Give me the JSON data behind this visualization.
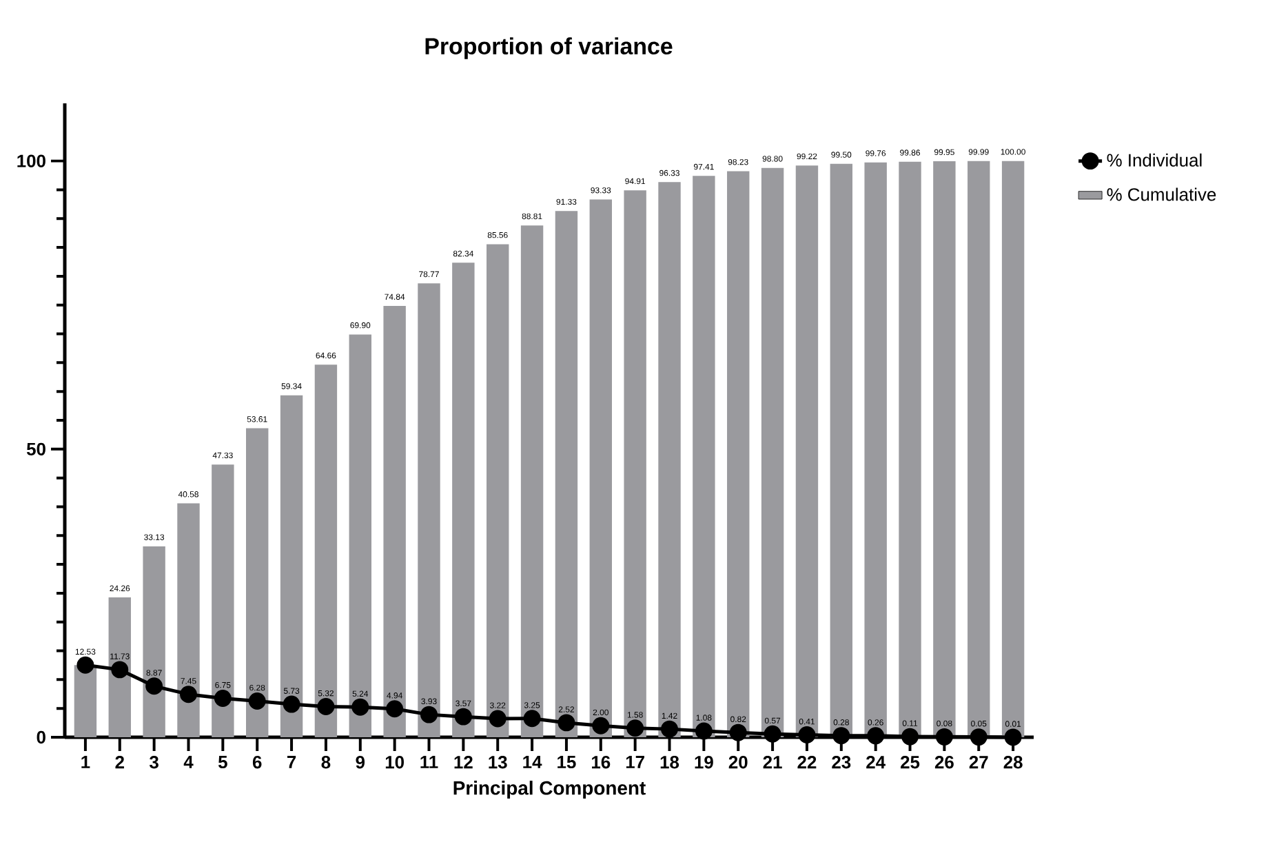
{
  "chart_data": {
    "type": "bar",
    "title": "Proportion of variance",
    "xlabel": "Principal Component",
    "categories": [
      "1",
      "2",
      "3",
      "4",
      "5",
      "6",
      "7",
      "8",
      "9",
      "10",
      "11",
      "12",
      "13",
      "14",
      "15",
      "16",
      "17",
      "18",
      "19",
      "20",
      "21",
      "22",
      "23",
      "24",
      "25",
      "26",
      "27",
      "28"
    ],
    "series": [
      {
        "name": "% Individual",
        "type": "line",
        "color": "#000000",
        "values": [
          12.53,
          11.73,
          8.87,
          7.45,
          6.75,
          6.28,
          5.73,
          5.32,
          5.24,
          4.94,
          3.93,
          3.57,
          3.22,
          3.25,
          2.52,
          2.0,
          1.58,
          1.42,
          1.08,
          0.82,
          0.57,
          0.41,
          0.28,
          0.26,
          0.11,
          0.08,
          0.05,
          0.01
        ],
        "value_labels": [
          "12.53",
          "11.73",
          "8.87",
          "7.45",
          "6.75",
          "6.28",
          "5.73",
          "5.32",
          "5.24",
          "4.94",
          "3.93",
          "3.57",
          "3.22",
          "3.25",
          "2.52",
          "2.00",
          "1.58",
          "1.42",
          "1.08",
          "0.82",
          "0.57",
          "0.41",
          "0.28",
          "0.26",
          "0.11",
          "0.08",
          "0.05",
          "0.01"
        ]
      },
      {
        "name": "% Cumulative",
        "type": "bar",
        "color": "#9a9a9e",
        "values": [
          12.53,
          24.26,
          33.13,
          40.58,
          47.33,
          53.61,
          59.34,
          64.66,
          69.9,
          74.84,
          78.77,
          82.34,
          85.56,
          88.81,
          91.33,
          93.33,
          94.91,
          96.33,
          97.41,
          98.23,
          98.8,
          99.22,
          99.5,
          99.76,
          99.86,
          99.95,
          99.99,
          100.0
        ],
        "value_labels": [
          null,
          "24.26",
          "33.13",
          "40.58",
          "47.33",
          "53.61",
          "59.34",
          "64.66",
          "69.90",
          "74.84",
          "78.77",
          "82.34",
          "85.56",
          "88.81",
          "91.33",
          "93.33",
          "94.91",
          "96.33",
          "97.41",
          "98.23",
          "98.80",
          "99.22",
          "99.50",
          "99.76",
          "99.86",
          "99.95",
          "99.99",
          "100.00"
        ]
      }
    ],
    "ylim": [
      0,
      110
    ],
    "yticks": [
      0,
      50,
      100
    ],
    "legend": "top right",
    "marker": "circle",
    "line_style": "solid"
  }
}
